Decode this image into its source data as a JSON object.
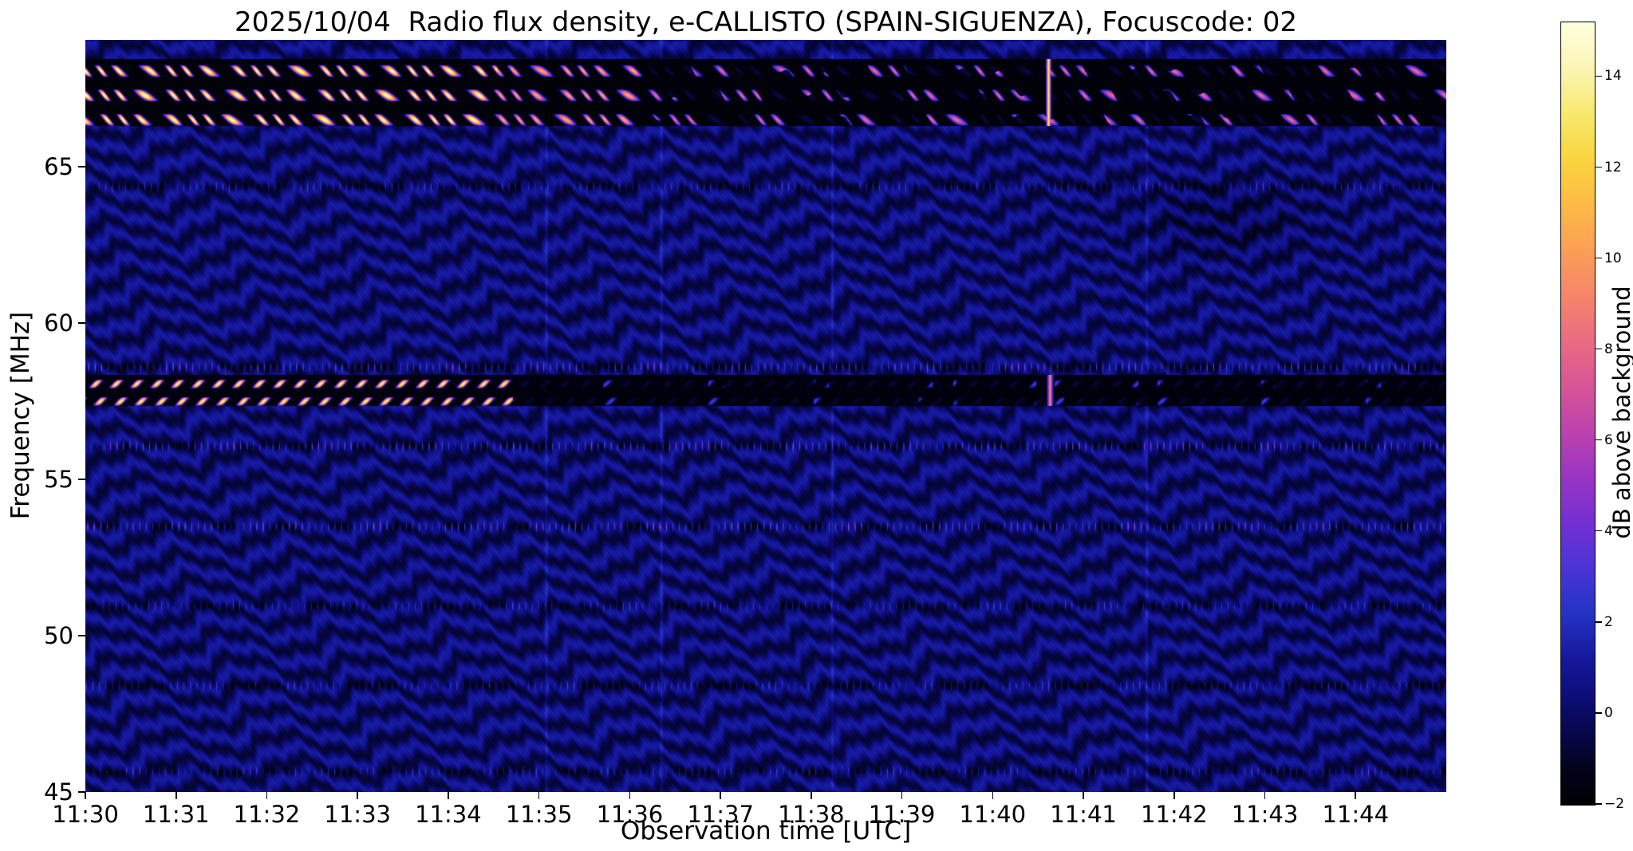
{
  "figure": {
    "background": "#ffffff"
  },
  "chart_data": {
    "type": "heatmap",
    "title": "2025/10/04  Radio flux density, e-CALLISTO (SPAIN-SIGUENZA), Focuscode: 02",
    "xlabel": "Observation time [UTC]",
    "ylabel": "Frequency [MHz]",
    "x_tick_labels": [
      "11:30",
      "11:31",
      "11:32",
      "11:33",
      "11:34",
      "11:35",
      "11:36",
      "11:37",
      "11:38",
      "11:39",
      "11:40",
      "11:41",
      "11:42",
      "11:43",
      "11:44"
    ],
    "x_range_seconds": [
      0,
      900
    ],
    "x_start_utc": "11:30",
    "y_tick_values": [
      45,
      50,
      55,
      60,
      65
    ],
    "y_range_mhz": [
      45,
      69.05
    ],
    "grid": false,
    "colorbar": {
      "label": "dB above background",
      "tick_values": [
        -2,
        0,
        2,
        4,
        6,
        8,
        10,
        12,
        14
      ],
      "tick_labels": [
        "−2",
        "0",
        "2",
        "4",
        "6",
        "8",
        "10",
        "12",
        "14"
      ],
      "value_range": [
        -2,
        15.2
      ]
    },
    "colormap_stops": [
      [
        -2.0,
        "#000004"
      ],
      [
        -1.2,
        "#03031c"
      ],
      [
        -0.5,
        "#070747"
      ],
      [
        0.3,
        "#0c0c74"
      ],
      [
        1.2,
        "#15189c"
      ],
      [
        2.2,
        "#2433c4"
      ],
      [
        3.2,
        "#4a34d6"
      ],
      [
        4.2,
        "#7430d2"
      ],
      [
        5.2,
        "#9a34c4"
      ],
      [
        6.2,
        "#bc42ae"
      ],
      [
        7.2,
        "#d85597"
      ],
      [
        8.2,
        "#ea6c82"
      ],
      [
        9.2,
        "#f6856b"
      ],
      [
        10.2,
        "#fb9f55"
      ],
      [
        11.2,
        "#fdbb46"
      ],
      [
        12.2,
        "#f9d53e"
      ],
      [
        13.2,
        "#f7e96e"
      ],
      [
        14.2,
        "#fbf5b4"
      ],
      [
        15.2,
        "#ffffe0"
      ]
    ],
    "features": {
      "description": "Solar radio spectrogram: dark blue rippled background with undulating interference bands, bright zig-zag RFI stripe bands near the top and at ~58 MHz (strongest 11:30-11:34:30), and regularly spaced dotted interference lines.",
      "background_ripple_spacing_mhz": 0.82,
      "bright_stripe_bands_mhz": [
        [
          66.3,
          68.45
        ],
        [
          57.35,
          58.35
        ]
      ],
      "stripe_bands_bright_until_s": 272,
      "dotted_interference_lines_mhz": [
        64.35,
        58.58,
        56.05,
        53.48,
        50.95,
        48.4,
        45.65
      ],
      "bright_vertical_artifact_s": 637,
      "faint_vertical_lines_s": [
        305,
        381,
        494,
        702
      ]
    }
  }
}
